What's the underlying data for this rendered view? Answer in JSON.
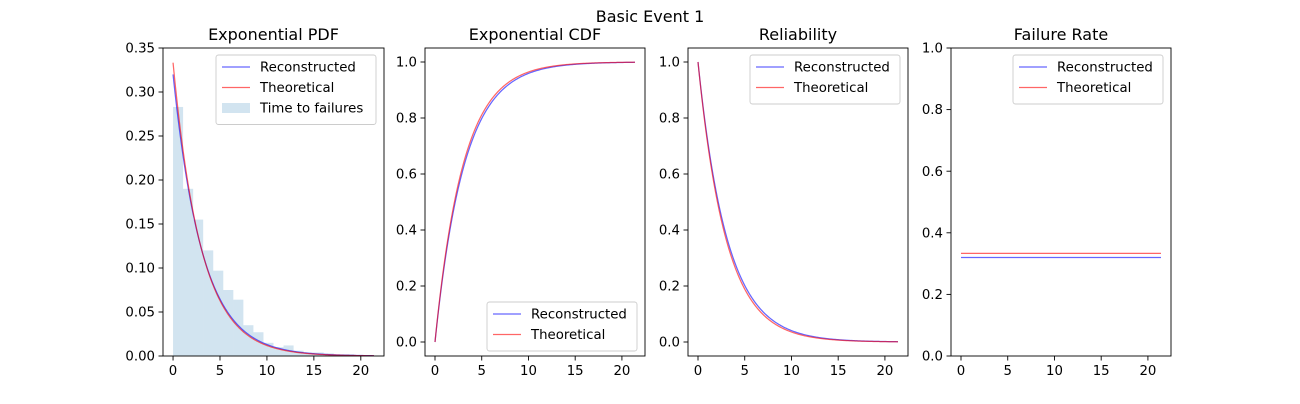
{
  "figure": {
    "title": "Basic Event 1"
  },
  "colors": {
    "reconstructed": "#0000ff",
    "theoretical": "#ff0000",
    "histogram": "#1f77b4",
    "overlay": "#800080"
  },
  "chart_data": [
    {
      "type": "line",
      "title": "Exponential PDF",
      "xlabel": "",
      "ylabel": "",
      "xlim": [
        -1.07,
        22.47
      ],
      "ylim": [
        0,
        0.35
      ],
      "xticks": [
        0,
        5,
        10,
        15,
        20
      ],
      "xtick_labels": [
        "0",
        "5",
        "10",
        "15",
        "20"
      ],
      "yticks": [
        0,
        0.05,
        0.1,
        0.15,
        0.2,
        0.25,
        0.3,
        0.35
      ],
      "ytick_labels": [
        "0.00",
        "0.05",
        "0.10",
        "0.15",
        "0.20",
        "0.25",
        "0.30",
        "0.35"
      ],
      "grid": false,
      "legend_position": "upper right",
      "legend_entries": [
        "Reconstructed",
        "Theoretical",
        "Time to failures"
      ],
      "series": [
        {
          "name": "Reconstructed",
          "kind": "exponential_pdf",
          "rate": 0.32,
          "x_range": [
            0,
            21.4
          ]
        },
        {
          "name": "Theoretical",
          "kind": "exponential_pdf",
          "rate": 0.3333,
          "x_range": [
            0,
            21.4
          ]
        }
      ],
      "histogram": {
        "name": "Time to failures",
        "bin_edges": [
          0,
          1.07,
          2.14,
          3.21,
          4.28,
          5.35,
          6.42,
          7.49,
          8.56,
          9.63,
          10.7,
          11.77,
          12.84,
          13.91,
          14.98,
          16.05,
          17.12,
          18.19,
          19.26,
          20.33,
          21.4
        ],
        "counts": [
          0.283,
          0.19,
          0.155,
          0.12,
          0.097,
          0.075,
          0.064,
          0.035,
          0.027,
          0.015,
          0.01,
          0.012,
          0.006,
          0.004,
          0.004,
          0.003,
          0.002,
          0.002,
          0.001,
          0.001
        ]
      }
    },
    {
      "type": "line",
      "title": "Exponential CDF",
      "xlabel": "",
      "ylabel": "",
      "xlim": [
        -1.07,
        22.47
      ],
      "ylim": [
        -0.05,
        1.05
      ],
      "xticks": [
        0,
        5,
        10,
        15,
        20
      ],
      "xtick_labels": [
        "0",
        "5",
        "10",
        "15",
        "20"
      ],
      "yticks": [
        0,
        0.2,
        0.4,
        0.6,
        0.8,
        1.0
      ],
      "ytick_labels": [
        "0.0",
        "0.2",
        "0.4",
        "0.6",
        "0.8",
        "1.0"
      ],
      "grid": false,
      "legend_position": "lower right",
      "legend_entries": [
        "Reconstructed",
        "Theoretical"
      ],
      "series": [
        {
          "name": "Reconstructed",
          "kind": "exponential_cdf",
          "rate": 0.32,
          "x_range": [
            0,
            21.4
          ]
        },
        {
          "name": "Theoretical",
          "kind": "exponential_cdf",
          "rate": 0.3333,
          "x_range": [
            0,
            21.4
          ]
        }
      ]
    },
    {
      "type": "line",
      "title": "Reliability",
      "xlabel": "",
      "ylabel": "",
      "xlim": [
        -1.07,
        22.47
      ],
      "ylim": [
        -0.05,
        1.05
      ],
      "xticks": [
        0,
        5,
        10,
        15,
        20
      ],
      "xtick_labels": [
        "0",
        "5",
        "10",
        "15",
        "20"
      ],
      "yticks": [
        0,
        0.2,
        0.4,
        0.6,
        0.8,
        1.0
      ],
      "ytick_labels": [
        "0.0",
        "0.2",
        "0.4",
        "0.6",
        "0.8",
        "1.0"
      ],
      "grid": false,
      "legend_position": "upper right",
      "legend_entries": [
        "Reconstructed",
        "Theoretical"
      ],
      "series": [
        {
          "name": "Reconstructed",
          "kind": "exponential_reliability",
          "rate": 0.32,
          "x_range": [
            0,
            21.4
          ]
        },
        {
          "name": "Theoretical",
          "kind": "exponential_reliability",
          "rate": 0.3333,
          "x_range": [
            0,
            21.4
          ]
        }
      ]
    },
    {
      "type": "line",
      "title": "Failure Rate",
      "xlabel": "",
      "ylabel": "",
      "xlim": [
        -1.07,
        22.47
      ],
      "ylim": [
        0,
        1
      ],
      "xticks": [
        0,
        5,
        10,
        15,
        20
      ],
      "xtick_labels": [
        "0",
        "5",
        "10",
        "15",
        "20"
      ],
      "yticks": [
        0,
        0.2,
        0.4,
        0.6,
        0.8,
        1.0
      ],
      "ytick_labels": [
        "0.0",
        "0.2",
        "0.4",
        "0.6",
        "0.8",
        "1.0"
      ],
      "grid": false,
      "legend_position": "upper right",
      "legend_entries": [
        "Reconstructed",
        "Theoretical"
      ],
      "series": [
        {
          "name": "Reconstructed",
          "kind": "constant",
          "value": 0.32,
          "x_range": [
            0,
            21.4
          ]
        },
        {
          "name": "Theoretical",
          "kind": "constant",
          "value": 0.3333,
          "x_range": [
            0,
            21.4
          ]
        }
      ]
    }
  ]
}
